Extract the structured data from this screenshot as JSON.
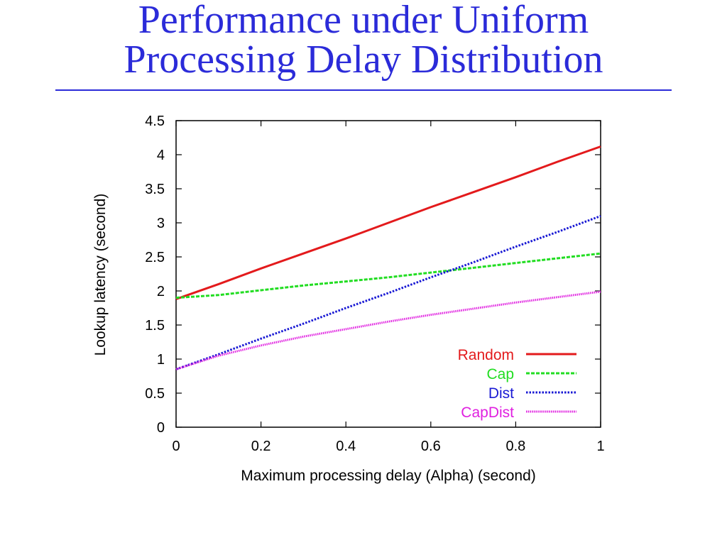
{
  "slide": {
    "title_line1": "Performance under Uniform",
    "title_line2": "Processing Delay Distribution",
    "title_color": "#2b2bd9"
  },
  "chart_data": {
    "type": "line",
    "title": "",
    "xlabel": "Maximum processing delay (Alpha) (second)",
    "ylabel": "Lookup latency (second)",
    "xlim": [
      0,
      1
    ],
    "ylim": [
      0,
      4.5
    ],
    "x_ticks": [
      "0",
      "0.2",
      "0.4",
      "0.6",
      "0.8",
      "1"
    ],
    "y_ticks": [
      "0",
      "0.5",
      "1",
      "1.5",
      "2",
      "2.5",
      "3",
      "3.5",
      "4",
      "4.5"
    ],
    "grid": false,
    "legend_position": "bottom-right",
    "series": [
      {
        "name": "Random",
        "color": "#e31a1c",
        "style": "solid",
        "x": [
          0,
          0.1,
          0.2,
          0.3,
          0.4,
          0.5,
          0.6,
          0.7,
          0.8,
          0.9,
          1.0
        ],
        "y": [
          1.88,
          2.1,
          2.33,
          2.55,
          2.77,
          3.0,
          3.23,
          3.45,
          3.67,
          3.9,
          4.12
        ]
      },
      {
        "name": "Cap",
        "color": "#22dd22",
        "style": "dashed",
        "x": [
          0,
          0.1,
          0.2,
          0.3,
          0.4,
          0.5,
          0.6,
          0.7,
          0.8,
          0.9,
          1.0
        ],
        "y": [
          1.9,
          1.94,
          2.01,
          2.08,
          2.14,
          2.2,
          2.27,
          2.34,
          2.41,
          2.48,
          2.55
        ]
      },
      {
        "name": "Dist",
        "color": "#1a1ad4",
        "style": "dotted",
        "x": [
          0,
          0.1,
          0.2,
          0.3,
          0.4,
          0.5,
          0.6,
          0.7,
          0.8,
          0.9,
          1.0
        ],
        "y": [
          0.85,
          1.07,
          1.3,
          1.52,
          1.75,
          1.97,
          2.2,
          2.42,
          2.65,
          2.87,
          3.1
        ]
      },
      {
        "name": "CapDist",
        "color": "#e020e0",
        "style": "dotted-fine",
        "x": [
          0,
          0.1,
          0.2,
          0.3,
          0.4,
          0.5,
          0.6,
          0.7,
          0.8,
          0.9,
          1.0
        ],
        "y": [
          0.85,
          1.05,
          1.2,
          1.33,
          1.44,
          1.55,
          1.65,
          1.74,
          1.83,
          1.91,
          1.99
        ]
      }
    ]
  }
}
